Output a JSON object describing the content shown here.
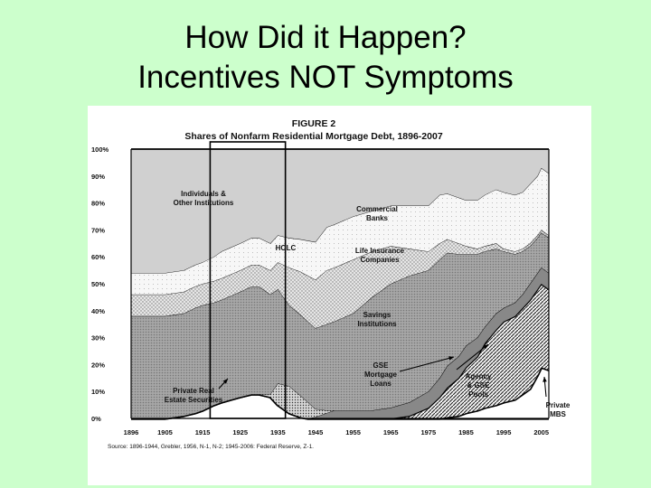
{
  "slide": {
    "title_line1": "How Did it Happen?",
    "title_line2": "Incentives NOT Symptoms"
  },
  "chart_data": {
    "type": "area",
    "title": "FIGURE 2",
    "subtitle": "Shares of Nonfarm Residential Mortgage Debt, 1896-2007",
    "xlabel": "",
    "ylabel": "",
    "xlim": [
      1896,
      2007
    ],
    "ylim": [
      0,
      100
    ],
    "x_ticks": [
      "1896",
      "1905",
      "1915",
      "1925",
      "1935",
      "1945",
      "1955",
      "1965",
      "1975",
      "1985",
      "1995",
      "2005"
    ],
    "y_ticks": [
      "0%",
      "10%",
      "20%",
      "30%",
      "40%",
      "50%",
      "60%",
      "70%",
      "80%",
      "90%",
      "100%"
    ],
    "grid": false,
    "highlight_period": [
      1917,
      1937
    ],
    "x": [
      1896,
      1905,
      1910,
      1913,
      1915,
      1918,
      1920,
      1925,
      1928,
      1930,
      1933,
      1935,
      1938,
      1941,
      1943,
      1945,
      1948,
      1950,
      1955,
      1960,
      1965,
      1970,
      1975,
      1978,
      1980,
      1983,
      1985,
      1988,
      1990,
      1993,
      1995,
      1998,
      2000,
      2002,
      2004,
      2005,
      2007
    ],
    "series": [
      {
        "name": "Private Real Estate Securities",
        "values": [
          0,
          0,
          1,
          2,
          3,
          5,
          6,
          8,
          9,
          9,
          8,
          5,
          2,
          0.5,
          0,
          0,
          0,
          0,
          0,
          0,
          0,
          0,
          0,
          0,
          0,
          0,
          0,
          0,
          0,
          0,
          0,
          0,
          0,
          0,
          0,
          0,
          0
        ]
      },
      {
        "name": "Private MBS",
        "values": [
          0,
          0,
          0,
          0,
          0,
          0,
          0,
          0,
          0,
          0,
          0,
          0,
          0,
          0,
          0,
          0,
          0,
          0,
          0,
          0,
          0,
          0,
          0,
          0,
          0.5,
          1,
          2,
          3,
          4,
          5,
          6,
          7,
          9,
          11,
          16,
          19,
          18
        ]
      },
      {
        "name": "Agency & GSE Pools",
        "values": [
          0,
          0,
          0,
          0,
          0,
          0,
          0,
          0,
          0,
          0,
          0,
          0,
          0,
          0,
          0,
          0,
          0,
          0,
          0,
          0,
          0,
          1,
          4,
          8,
          11,
          14,
          17,
          20,
          24,
          28,
          30,
          31,
          32,
          33,
          32,
          31,
          30
        ]
      },
      {
        "name": "GSE Mortgage Loans",
        "values": [
          0,
          0,
          0,
          0,
          0,
          0,
          0,
          0,
          0,
          0,
          0,
          0,
          0,
          0,
          0,
          0.5,
          2,
          3,
          3,
          3,
          4,
          5,
          6,
          7,
          8,
          8,
          8,
          7,
          6,
          6,
          5,
          5,
          5,
          6,
          6,
          6,
          6
        ]
      },
      {
        "name": "HOLC",
        "values": [
          0,
          0,
          0,
          0,
          0,
          0,
          0,
          0,
          0,
          0,
          1,
          8,
          10,
          8,
          6,
          3,
          1,
          0,
          0,
          0,
          0,
          0,
          0,
          0,
          0,
          0,
          0,
          0,
          0,
          0,
          0,
          0,
          0,
          0,
          0,
          0,
          0
        ]
      },
      {
        "name": "Savings Institutions",
        "values": [
          38,
          38,
          38,
          39,
          39,
          38,
          38,
          39,
          40,
          40,
          37,
          35,
          30,
          30,
          30,
          30,
          32,
          33,
          36,
          42,
          46,
          47,
          45,
          44,
          42,
          38,
          34,
          31,
          28,
          24,
          21,
          18,
          16,
          14,
          13,
          13,
          13
        ]
      },
      {
        "name": "Life Insurance Companies",
        "values": [
          8,
          8,
          8,
          8,
          8,
          8,
          8,
          8,
          8,
          8,
          9,
          10,
          14,
          16,
          17,
          18,
          20,
          20,
          20,
          17,
          14,
          10,
          7,
          6,
          5,
          4,
          3,
          2,
          2,
          2,
          1,
          1,
          1,
          1,
          1,
          1,
          1
        ]
      },
      {
        "name": "Commercial Banks",
        "values": [
          8,
          8,
          8,
          8,
          8,
          9,
          10,
          10,
          10,
          10,
          10,
          10,
          11,
          12,
          13,
          14,
          16,
          16,
          16,
          15,
          15,
          16,
          17,
          18,
          17,
          17,
          17,
          18,
          19,
          20,
          21,
          21,
          21,
          22,
          22,
          23,
          23
        ]
      },
      {
        "name": "Individuals & Other Institutions",
        "values": [
          46,
          46,
          45,
          43,
          42,
          40,
          38,
          35,
          33,
          33,
          35,
          32,
          33,
          33.5,
          34,
          34.5,
          29,
          28,
          25,
          23,
          21,
          21,
          21,
          17,
          16.5,
          18,
          19,
          19,
          17,
          15,
          16,
          17,
          16,
          13,
          10,
          7,
          9
        ]
      }
    ],
    "area_labels": [
      "Individuals & Other Institutions",
      "Commercial Banks",
      "HOLC",
      "Life Insurance Companies",
      "Savings Institutions",
      "GSE Mortgage Loans",
      "Agency & GSE Pools",
      "Private Real Estate Securities",
      "Private MBS"
    ],
    "source": "Source: 1896-1944, Grebler, 1956, N-1, N-2; 1945-2006: Federal Reserve, Z-1."
  }
}
